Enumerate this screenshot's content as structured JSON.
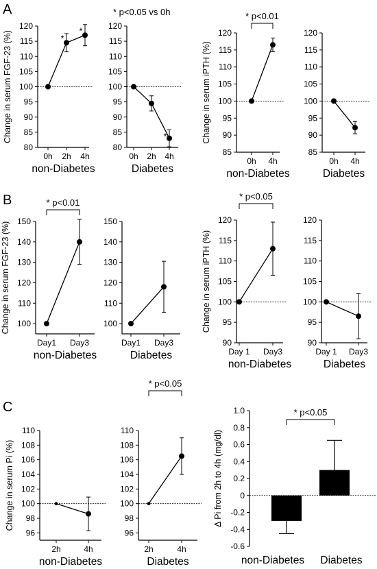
{
  "panel_labels": [
    "A",
    "B",
    "C"
  ],
  "top_note": "* p<0.05 vs 0h",
  "chart_data": [
    {
      "id": "A1",
      "type": "line",
      "ylabel": "Change in serum FGF-23  (%)",
      "xlabel": "non-Diabetes",
      "categories": [
        "0h",
        "2h",
        "4h"
      ],
      "ylim": [
        80,
        120
      ],
      "yticks": [
        80,
        85,
        90,
        95,
        100,
        105,
        110,
        115,
        120
      ],
      "reference": 100,
      "series": [
        {
          "values": [
            100,
            114.5,
            117
          ],
          "err": [
            0,
            3,
            3.5
          ]
        }
      ],
      "stars": [
        "",
        "*",
        "*"
      ]
    },
    {
      "id": "A2",
      "type": "line",
      "ylabel": "",
      "xlabel": "Diabetes",
      "categories": [
        "0h",
        "2h",
        "4h"
      ],
      "ylim": [
        80,
        120
      ],
      "yticks": [
        80,
        85,
        90,
        95,
        100,
        105,
        110,
        115,
        120
      ],
      "reference": 100,
      "series": [
        {
          "values": [
            100,
            94.5,
            83
          ],
          "err": [
            0,
            2.5,
            2.8
          ]
        }
      ],
      "stars": [
        "",
        "",
        "*"
      ]
    },
    {
      "id": "A3",
      "type": "line",
      "ylabel": "Change in serum iPTH  (%)",
      "xlabel": "non-Diabetes",
      "categories": [
        "0h",
        "4h"
      ],
      "ylim": [
        85,
        120
      ],
      "yticks": [
        85,
        90,
        95,
        100,
        105,
        110,
        115,
        120
      ],
      "reference": 100,
      "series": [
        {
          "values": [
            100,
            116.5
          ],
          "err": [
            0,
            2
          ]
        }
      ],
      "sig": "* p<0.01"
    },
    {
      "id": "A4",
      "type": "line",
      "ylabel": "",
      "xlabel": "Diabetes",
      "categories": [
        "0h",
        "4h"
      ],
      "ylim": [
        85,
        120
      ],
      "yticks": [
        85,
        90,
        95,
        100,
        105,
        110,
        115,
        120
      ],
      "reference": 100,
      "series": [
        {
          "values": [
            100,
            92.2
          ],
          "err": [
            0,
            1.8
          ]
        }
      ]
    },
    {
      "id": "B1",
      "type": "line",
      "ylabel": "Change in serum FGF-23  (%)",
      "xlabel": "non-Diabetes",
      "categories": [
        "Day1",
        "Day3"
      ],
      "ylim": [
        95,
        150
      ],
      "yticks": [
        100,
        110,
        120,
        130,
        140,
        150
      ],
      "series": [
        {
          "values": [
            100,
            140
          ],
          "err": [
            0,
            11
          ]
        }
      ],
      "sig": "* p<0.01"
    },
    {
      "id": "B2",
      "type": "line",
      "ylabel": "",
      "xlabel": "Diabetes",
      "categories": [
        "Day1",
        "Day3"
      ],
      "ylim": [
        95,
        150
      ],
      "yticks": [
        100,
        110,
        120,
        130,
        140,
        150
      ],
      "series": [
        {
          "values": [
            100,
            118
          ],
          "err": [
            0,
            12.5
          ]
        }
      ]
    },
    {
      "id": "B3",
      "type": "line",
      "ylabel": "Change in serum iPTH  (%)",
      "xlabel": "non-Diabetes",
      "categories": [
        "Day 1",
        "Day3"
      ],
      "ylim": [
        90,
        120
      ],
      "yticks": [
        90,
        95,
        100,
        105,
        110,
        115,
        120
      ],
      "reference": 100,
      "series": [
        {
          "values": [
            100,
            113
          ],
          "err": [
            0,
            6.5
          ]
        }
      ],
      "sig": "* p<0.05"
    },
    {
      "id": "B4",
      "type": "line",
      "ylabel": "",
      "xlabel": "Diabetes",
      "categories": [
        "Day 1",
        "Day3"
      ],
      "ylim": [
        90,
        120
      ],
      "yticks": [
        90,
        95,
        100,
        105,
        110,
        115,
        120
      ],
      "reference": 100,
      "series": [
        {
          "values": [
            100,
            96.5
          ],
          "err": [
            0,
            5.5
          ]
        }
      ]
    },
    {
      "id": "C1",
      "type": "line",
      "ylabel": "Change in serum Pi (%)",
      "xlabel": "non-Diabetes",
      "categories": [
        "2h",
        "4h"
      ],
      "ylim": [
        95,
        110
      ],
      "yticks": [
        96,
        98,
        100,
        102,
        104,
        106,
        108,
        110
      ],
      "reference": 100,
      "series": [
        {
          "values": [
            100,
            98.6
          ],
          "err": [
            0,
            2.3
          ]
        }
      ]
    },
    {
      "id": "C2",
      "type": "line",
      "ylabel": "",
      "xlabel": "Diabetes",
      "categories": [
        "2h",
        "4h"
      ],
      "ylim": [
        95,
        110
      ],
      "yticks": [
        96,
        98,
        100,
        102,
        104,
        106,
        108,
        110
      ],
      "reference": 100,
      "series": [
        {
          "values": [
            100,
            106.5
          ],
          "err": [
            0,
            2.5
          ]
        }
      ],
      "sig": "* p<0.05"
    },
    {
      "id": "C3",
      "type": "bar",
      "ylabel": "Δ  Pi   from 2h to 4h  (mg/dl)",
      "categories": [
        "non-Diabetes",
        "Diabetes"
      ],
      "ylim": [
        -0.6,
        1.0
      ],
      "yticks": [
        -0.6,
        -0.4,
        -0.2,
        0,
        0.2,
        0.4,
        0.6,
        0.8,
        1.0
      ],
      "reference": 0,
      "series": [
        {
          "values": [
            -0.3,
            0.3
          ],
          "err": [
            0.15,
            0.35
          ]
        }
      ],
      "sig": "* p<0.05"
    }
  ]
}
